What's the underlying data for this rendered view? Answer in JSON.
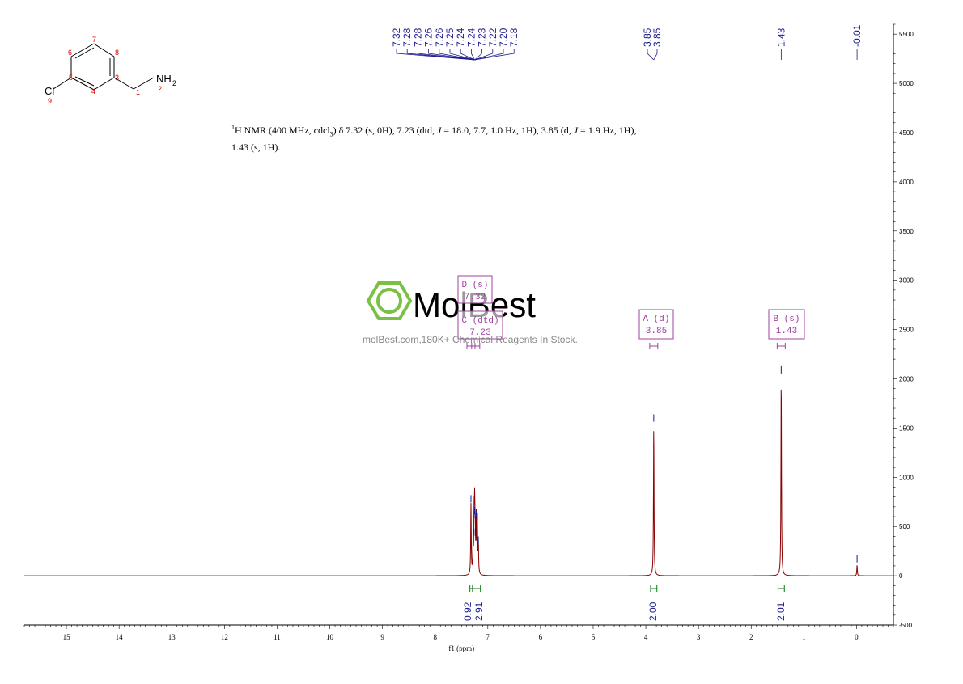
{
  "description": {
    "line1_part1": "H NMR (400 MHz, cdcl",
    "line1_part2": ") δ 7.32 (s, 0H), 7.23 (dtd, ",
    "line1_part3": " = 18.0, 7.7, 1.0 Hz, 1H), 3.85 (d, ",
    "line1_part4": " = 1.9 Hz, 1H),",
    "sup": "1",
    "sub": "3",
    "j": "J",
    "line2": "1.43 (s, 1H)."
  },
  "molecule": {
    "atoms": [
      {
        "label": "Cl",
        "index": "9"
      },
      {
        "label": "NH",
        "sub": "2",
        "index": "2"
      }
    ],
    "atom_numbers": [
      "1",
      "3",
      "4",
      "5",
      "6",
      "7",
      "8"
    ]
  },
  "watermark": {
    "brand": "MolBest",
    "tagline": "molBest.com,180K+ Chemical Reagents In Stock."
  },
  "chart_data": {
    "type": "line",
    "title": "",
    "xlabel": "f1 (ppm)",
    "ylabel": "",
    "xlim": [
      15.8,
      -0.7
    ],
    "ylim": [
      -500,
      5600
    ],
    "x_ticks": [
      15,
      14,
      13,
      12,
      11,
      10,
      9,
      8,
      7,
      6,
      5,
      4,
      3,
      2,
      1,
      0
    ],
    "y_ticks": [
      -500,
      0,
      500,
      1000,
      1500,
      2000,
      2500,
      3000,
      3500,
      4000,
      4500,
      5000,
      5500
    ],
    "peaks": [
      {
        "ppm": 7.32,
        "height": 720
      },
      {
        "ppm": 7.28,
        "height": 300
      },
      {
        "ppm": 7.26,
        "height": 560
      },
      {
        "ppm": 7.25,
        "height": 600
      },
      {
        "ppm": 7.24,
        "height": 380
      },
      {
        "ppm": 7.22,
        "height": 560
      },
      {
        "ppm": 7.2,
        "height": 540
      },
      {
        "ppm": 7.18,
        "height": 300
      },
      {
        "ppm": 3.85,
        "height": 1540
      },
      {
        "ppm": 1.43,
        "height": 2030
      },
      {
        "ppm": -0.01,
        "height": 110
      }
    ],
    "peak_labels": [
      {
        "group": "aromatic",
        "values": [
          "7.32",
          "7.28",
          "7.28",
          "7.26",
          "7.26",
          "7.25",
          "7.24",
          "7.24",
          "7.23",
          "7.22",
          "7.20",
          "7.18"
        ]
      },
      {
        "group": "ch2",
        "values": [
          "3.85",
          "3.85"
        ]
      },
      {
        "group": "nh2",
        "values": [
          "1.43"
        ]
      },
      {
        "group": "tms",
        "values": [
          "-0.01"
        ]
      }
    ],
    "multiplets": [
      {
        "name": "D (s)",
        "value": "7.32",
        "ppm": 7.32
      },
      {
        "name": "C (dtd)",
        "value": "7.23",
        "ppm": 7.23
      },
      {
        "name": "A (d)",
        "value": "3.85",
        "ppm": 3.85
      },
      {
        "name": "B (s)",
        "value": "1.43",
        "ppm": 1.43
      }
    ],
    "integrals": [
      {
        "value": "0.92",
        "from": 7.34,
        "to": 7.29
      },
      {
        "value": "2.91",
        "from": 7.29,
        "to": 7.14
      },
      {
        "value": "2.00",
        "from": 3.91,
        "to": 3.79
      },
      {
        "value": "2.01",
        "from": 1.49,
        "to": 1.37
      }
    ],
    "colors": {
      "spectrum": "#8b0000",
      "peak_label": "#1a1a8c",
      "multiplet": "#a040a0",
      "integral": "#0a7a0a",
      "watermark": "#7ac143"
    }
  }
}
